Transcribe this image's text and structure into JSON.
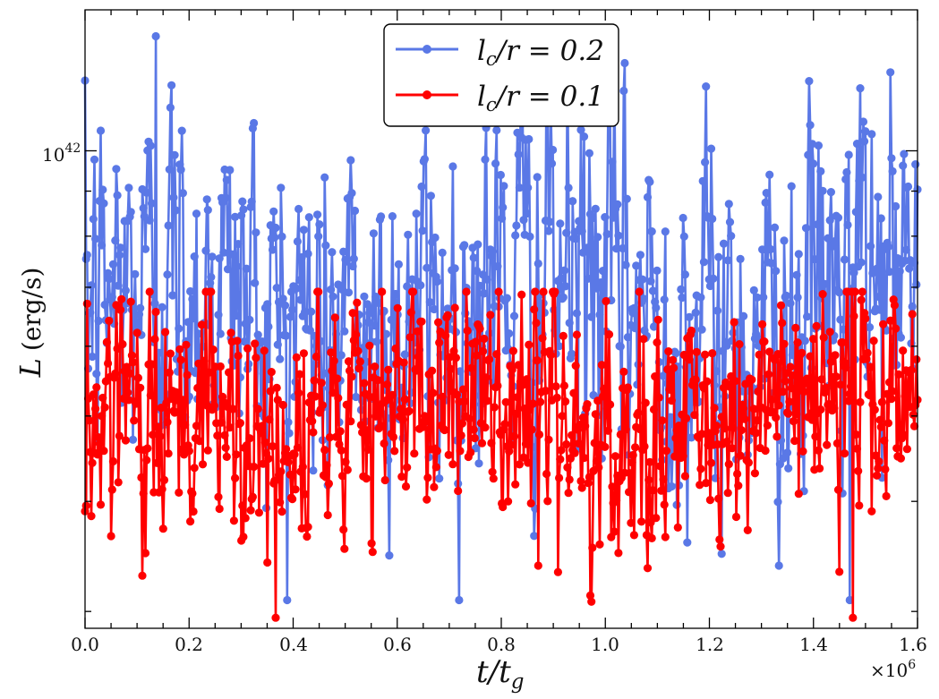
{
  "chart_data": {
    "type": "line",
    "title": "",
    "xlabel": "t/t_g",
    "xlabel_parts": {
      "main": "t/t",
      "sub": "g"
    },
    "ylabel": "L (erg/s)",
    "ylabel_parts": {
      "var": "L",
      "unit": "(erg/s)"
    },
    "xlim": [
      0,
      1.6
    ],
    "x_multiplier_label": "×10",
    "x_multiplier_exp": "6",
    "ylim_log10": [
      41.458,
      42.16
    ],
    "yscale": "log",
    "x_ticks": [
      0.0,
      0.2,
      0.4,
      0.6,
      0.8,
      1.0,
      1.2,
      1.4,
      1.6
    ],
    "x_tick_labels": [
      "0.0",
      "0.2",
      "0.4",
      "0.6",
      "0.8",
      "1.0",
      "1.2",
      "1.4",
      "1.6"
    ],
    "y_major_tick_label": {
      "base": "10",
      "exp": "42",
      "value_log10": 42
    },
    "legend_position": "top-center",
    "series": [
      {
        "name": "l_c/r = 0.2",
        "label_parts": {
          "l": "l",
          "sub": "c",
          "rest": "/r = 0.2"
        },
        "color": "#5a78e6",
        "n_points": 800,
        "mean_log10": 41.83,
        "spread_log10": 0.09,
        "max": {
          "x": 0.137,
          "log10": 42.13
        },
        "min": {
          "x": 1.47,
          "log10": 41.49
        }
      },
      {
        "name": "l_c/r = 0.1",
        "label_parts": {
          "l": "l",
          "sub": "c",
          "rest": "/r = 0.1"
        },
        "color": "#ff0000",
        "n_points": 800,
        "mean_log10": 41.7,
        "spread_log10": 0.06,
        "max": {
          "x": 0.57,
          "log10": 41.84
        },
        "min": {
          "x": 1.475,
          "log10": 41.47
        }
      }
    ]
  }
}
